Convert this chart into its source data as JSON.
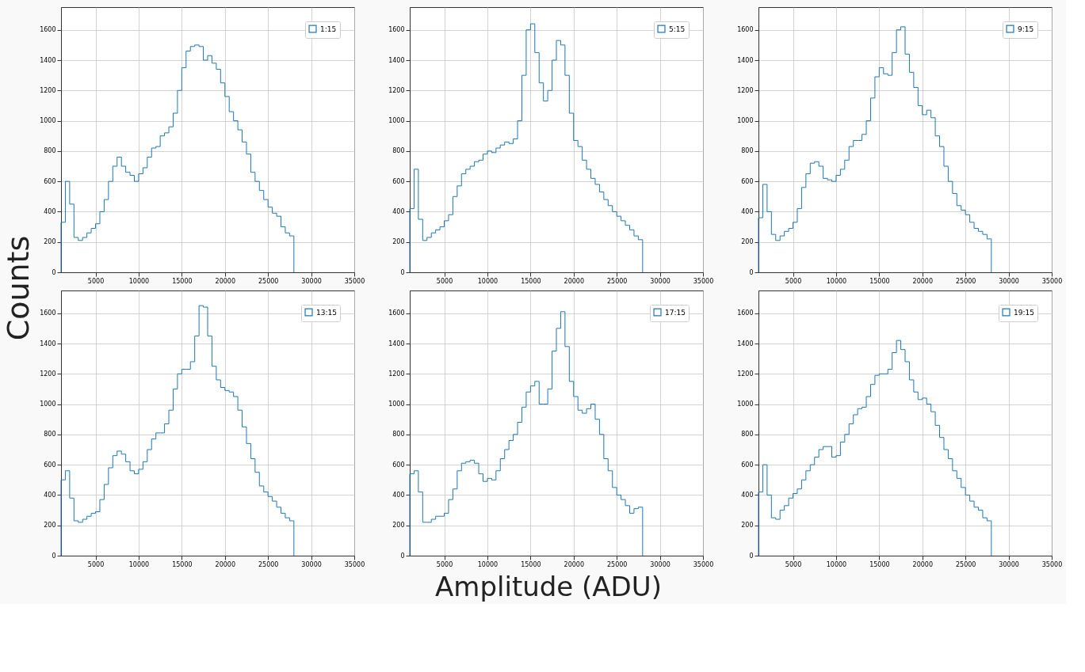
{
  "chart_data": [
    {
      "type": "histogram",
      "ylabel": "Counts",
      "bins": [
        1000,
        1500,
        2000,
        2500,
        3000,
        3500,
        4000,
        4500,
        5000,
        5500,
        6000,
        6500,
        7000,
        7500,
        8000,
        8500,
        9000,
        9500,
        10000,
        10500,
        11000,
        11500,
        12000,
        12500,
        13000,
        13500,
        14000,
        14500,
        15000,
        15500,
        16000,
        16500,
        17000,
        17500,
        18000,
        18500,
        19000,
        19500,
        20000,
        20500,
        21000,
        21500,
        22000,
        22500,
        23000,
        23500,
        24000,
        24500,
        25000,
        25500,
        26000,
        26500,
        27000,
        27500,
        28000
      ],
      "series": [
        {
          "name": "1:15",
          "color": "#1f77b4",
          "values": [
            330,
            600,
            450,
            230,
            210,
            230,
            260,
            290,
            320,
            400,
            480,
            600,
            700,
            760,
            700,
            660,
            640,
            600,
            650,
            690,
            760,
            820,
            830,
            900,
            920,
            960,
            1050,
            1200,
            1350,
            1460,
            1490,
            1500,
            1490,
            1400,
            1430,
            1380,
            1340,
            1250,
            1160,
            1060,
            1000,
            940,
            860,
            780,
            660,
            600,
            540,
            480,
            430,
            390,
            370,
            300,
            260,
            240
          ]
        }
      ],
      "xlim": [
        1000,
        35000
      ],
      "xticks": [
        5000,
        10000,
        15000,
        20000,
        25000,
        30000,
        35000
      ],
      "ylim": [
        0,
        1750
      ],
      "yticks": [
        0,
        200,
        400,
        600,
        800,
        1000,
        1200,
        1400,
        1600
      ],
      "grid": true,
      "legend": "top right"
    },
    {
      "type": "histogram",
      "bins": [
        1000,
        1500,
        2000,
        2500,
        3000,
        3500,
        4000,
        4500,
        5000,
        5500,
        6000,
        6500,
        7000,
        7500,
        8000,
        8500,
        9000,
        9500,
        10000,
        10500,
        11000,
        11500,
        12000,
        12500,
        13000,
        13500,
        14000,
        14500,
        15000,
        15500,
        16000,
        16500,
        17000,
        17500,
        18000,
        18500,
        19000,
        19500,
        20000,
        20500,
        21000,
        21500,
        22000,
        22500,
        23000,
        23500,
        24000,
        24500,
        25000,
        25500,
        26000,
        26500,
        27000,
        27500,
        28000
      ],
      "series": [
        {
          "name": "5:15",
          "color": "#1f77b4",
          "values": [
            420,
            680,
            350,
            210,
            230,
            260,
            280,
            300,
            340,
            380,
            500,
            570,
            650,
            680,
            700,
            730,
            740,
            780,
            800,
            790,
            820,
            840,
            860,
            850,
            880,
            1000,
            1300,
            1600,
            1640,
            1450,
            1250,
            1130,
            1200,
            1400,
            1530,
            1500,
            1300,
            1050,
            870,
            830,
            740,
            680,
            620,
            580,
            530,
            480,
            440,
            400,
            370,
            340,
            310,
            280,
            240,
            215
          ]
        }
      ],
      "xlim": [
        1000,
        35000
      ],
      "xticks": [
        5000,
        10000,
        15000,
        20000,
        25000,
        30000,
        35000
      ],
      "ylim": [
        0,
        1750
      ],
      "yticks": [
        0,
        200,
        400,
        600,
        800,
        1000,
        1200,
        1400,
        1600
      ],
      "grid": true,
      "legend": "top right"
    },
    {
      "type": "histogram",
      "bins": [
        1000,
        1500,
        2000,
        2500,
        3000,
        3500,
        4000,
        4500,
        5000,
        5500,
        6000,
        6500,
        7000,
        7500,
        8000,
        8500,
        9000,
        9500,
        10000,
        10500,
        11000,
        11500,
        12000,
        12500,
        13000,
        13500,
        14000,
        14500,
        15000,
        15500,
        16000,
        16500,
        17000,
        17500,
        18000,
        18500,
        19000,
        19500,
        20000,
        20500,
        21000,
        21500,
        22000,
        22500,
        23000,
        23500,
        24000,
        24500,
        25000,
        25500,
        26000,
        26500,
        27000,
        27500,
        28000
      ],
      "series": [
        {
          "name": "9:15",
          "color": "#1f77b4",
          "values": [
            360,
            580,
            400,
            250,
            210,
            240,
            270,
            290,
            330,
            420,
            560,
            650,
            720,
            730,
            700,
            620,
            610,
            600,
            640,
            680,
            740,
            830,
            870,
            870,
            910,
            1000,
            1150,
            1290,
            1350,
            1310,
            1300,
            1450,
            1600,
            1620,
            1440,
            1320,
            1220,
            1100,
            1040,
            1070,
            1020,
            900,
            830,
            700,
            600,
            520,
            440,
            410,
            380,
            330,
            290,
            270,
            250,
            220
          ]
        }
      ],
      "xlim": [
        1000,
        35000
      ],
      "xticks": [
        5000,
        10000,
        15000,
        20000,
        25000,
        30000,
        35000
      ],
      "ylim": [
        0,
        1750
      ],
      "yticks": [
        0,
        200,
        400,
        600,
        800,
        1000,
        1200,
        1400,
        1600
      ],
      "grid": true,
      "legend": "top right"
    },
    {
      "type": "histogram",
      "bins": [
        1000,
        1500,
        2000,
        2500,
        3000,
        3500,
        4000,
        4500,
        5000,
        5500,
        6000,
        6500,
        7000,
        7500,
        8000,
        8500,
        9000,
        9500,
        10000,
        10500,
        11000,
        11500,
        12000,
        12500,
        13000,
        13500,
        14000,
        14500,
        15000,
        15500,
        16000,
        16500,
        17000,
        17500,
        18000,
        18500,
        19000,
        19500,
        20000,
        20500,
        21000,
        21500,
        22000,
        22500,
        23000,
        23500,
        24000,
        24500,
        25000,
        25500,
        26000,
        26500,
        27000,
        27500,
        28000
      ],
      "series": [
        {
          "name": "13:15",
          "color": "#1f77b4",
          "values": [
            500,
            560,
            380,
            230,
            220,
            240,
            260,
            280,
            290,
            370,
            470,
            580,
            660,
            690,
            670,
            620,
            560,
            540,
            570,
            620,
            700,
            770,
            810,
            810,
            870,
            960,
            1100,
            1200,
            1230,
            1230,
            1280,
            1450,
            1650,
            1640,
            1450,
            1250,
            1160,
            1110,
            1090,
            1080,
            1050,
            960,
            850,
            740,
            640,
            550,
            460,
            420,
            390,
            360,
            320,
            280,
            250,
            230
          ]
        }
      ],
      "xlim": [
        1000,
        35000
      ],
      "xticks": [
        5000,
        10000,
        15000,
        20000,
        25000,
        30000,
        35000
      ],
      "ylim": [
        0,
        1750
      ],
      "yticks": [
        0,
        200,
        400,
        600,
        800,
        1000,
        1200,
        1400,
        1600
      ],
      "grid": true,
      "legend": "top right"
    },
    {
      "type": "histogram",
      "xlabel": "Amplitude (ADU)",
      "bins": [
        1000,
        1500,
        2000,
        2500,
        3000,
        3500,
        4000,
        4500,
        5000,
        5500,
        6000,
        6500,
        7000,
        7500,
        8000,
        8500,
        9000,
        9500,
        10000,
        10500,
        11000,
        11500,
        12000,
        12500,
        13000,
        13500,
        14000,
        14500,
        15000,
        15500,
        16000,
        16500,
        17000,
        17500,
        18000,
        18500,
        19000,
        19500,
        20000,
        20500,
        21000,
        21500,
        22000,
        22500,
        23000,
        23500,
        24000,
        24500,
        25000,
        25500,
        26000,
        26500,
        27000,
        27500,
        28000
      ],
      "series": [
        {
          "name": "17:15",
          "color": "#1f77b4",
          "values": [
            540,
            560,
            420,
            220,
            220,
            240,
            260,
            260,
            280,
            370,
            440,
            560,
            610,
            620,
            630,
            610,
            540,
            490,
            510,
            500,
            560,
            640,
            700,
            760,
            800,
            880,
            980,
            1080,
            1120,
            1150,
            1000,
            1000,
            1100,
            1350,
            1500,
            1610,
            1380,
            1150,
            1050,
            960,
            940,
            970,
            1000,
            900,
            800,
            640,
            560,
            450,
            400,
            370,
            330,
            280,
            310,
            320
          ]
        }
      ],
      "xlim": [
        1000,
        35000
      ],
      "xticks": [
        5000,
        10000,
        15000,
        20000,
        25000,
        30000,
        35000
      ],
      "ylim": [
        0,
        1750
      ],
      "yticks": [
        0,
        200,
        400,
        600,
        800,
        1000,
        1200,
        1400,
        1600
      ],
      "grid": true,
      "legend": "top right"
    },
    {
      "type": "histogram",
      "bins": [
        1000,
        1500,
        2000,
        2500,
        3000,
        3500,
        4000,
        4500,
        5000,
        5500,
        6000,
        6500,
        7000,
        7500,
        8000,
        8500,
        9000,
        9500,
        10000,
        10500,
        11000,
        11500,
        12000,
        12500,
        13000,
        13500,
        14000,
        14500,
        15000,
        15500,
        16000,
        16500,
        17000,
        17500,
        18000,
        18500,
        19000,
        19500,
        20000,
        20500,
        21000,
        21500,
        22000,
        22500,
        23000,
        23500,
        24000,
        24500,
        25000,
        25500,
        26000,
        26500,
        27000,
        27500,
        28000
      ],
      "series": [
        {
          "name": "19:15",
          "color": "#1f77b4",
          "values": [
            420,
            600,
            400,
            250,
            240,
            300,
            330,
            380,
            410,
            440,
            500,
            560,
            600,
            650,
            700,
            720,
            720,
            650,
            660,
            750,
            800,
            870,
            930,
            970,
            980,
            1050,
            1130,
            1190,
            1200,
            1200,
            1230,
            1340,
            1420,
            1360,
            1280,
            1160,
            1080,
            1030,
            1040,
            1000,
            950,
            860,
            780,
            700,
            640,
            560,
            510,
            450,
            400,
            360,
            320,
            300,
            250,
            230
          ]
        }
      ],
      "xlim": [
        1000,
        35000
      ],
      "xticks": [
        5000,
        10000,
        15000,
        20000,
        25000,
        30000,
        35000
      ],
      "ylim": [
        0,
        1750
      ],
      "yticks": [
        0,
        200,
        400,
        600,
        800,
        1000,
        1200,
        1400,
        1600
      ],
      "grid": true,
      "legend": "top right"
    }
  ]
}
